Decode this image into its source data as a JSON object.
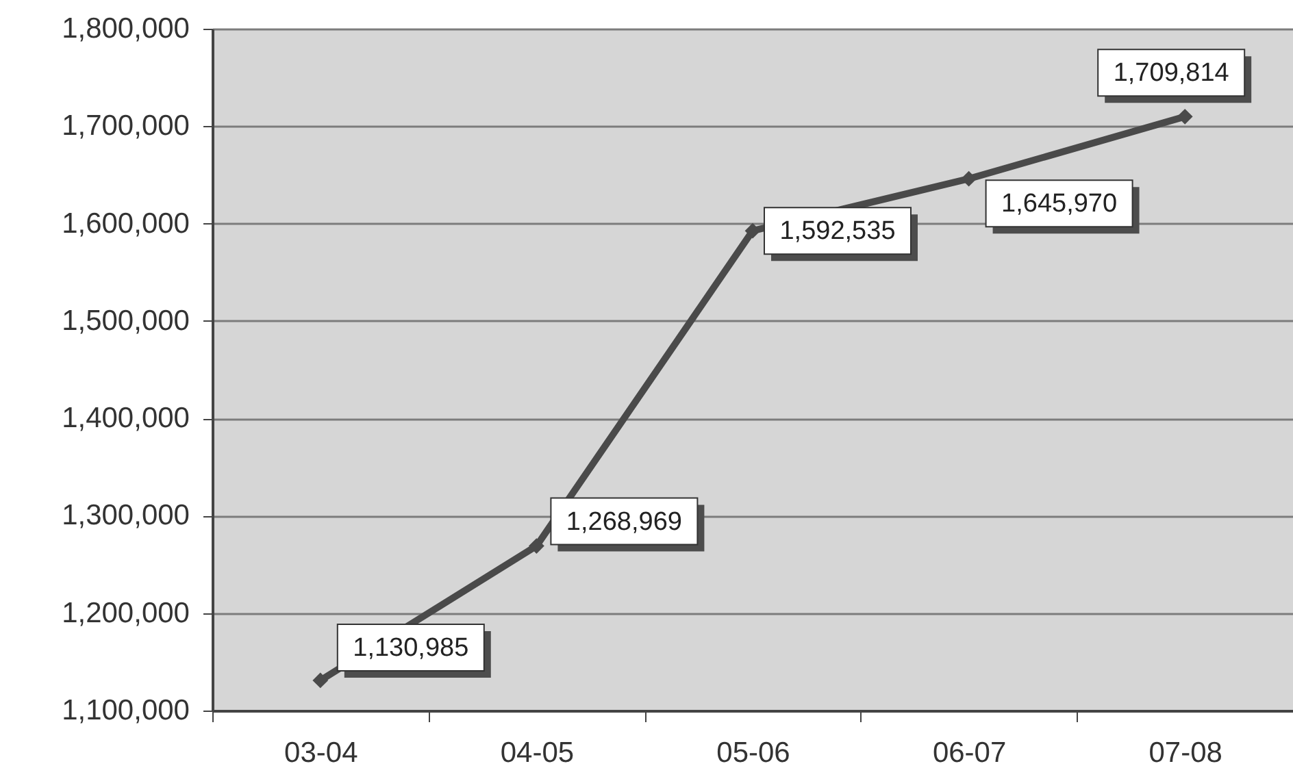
{
  "chart_data": {
    "type": "line",
    "categories": [
      "03-04",
      "04-05",
      "05-06",
      "06-07",
      "07-08"
    ],
    "series": [
      {
        "color": "#4a4a4a",
        "values": [
          1130985,
          1268969,
          1592535,
          1645970,
          1709814
        ],
        "value_labels": [
          "1,130,985",
          "1,268,969",
          "1,592,535",
          "1,645,970",
          "1,709,814"
        ]
      }
    ],
    "ylim": [
      1100000,
      1800000
    ],
    "yticks": [
      {
        "value": 1100000,
        "label": "1,100,000"
      },
      {
        "value": 1200000,
        "label": "1,200,000"
      },
      {
        "value": 1300000,
        "label": "1,300,000"
      },
      {
        "value": 1400000,
        "label": "1,400,000"
      },
      {
        "value": 1500000,
        "label": "1,500,000"
      },
      {
        "value": 1600000,
        "label": "1,600,000"
      },
      {
        "value": 1700000,
        "label": "1,700,000"
      },
      {
        "value": 1800000,
        "label": "1,800,000"
      }
    ],
    "grid": "y",
    "marker": "diamond"
  }
}
